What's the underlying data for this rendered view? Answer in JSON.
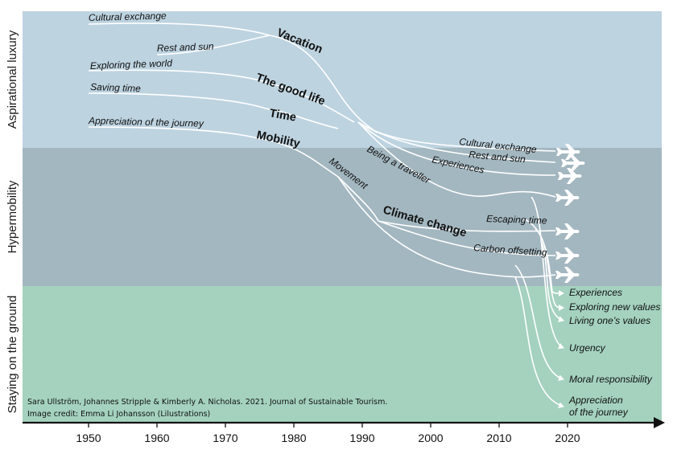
{
  "bands": {
    "aspirational": "Aspirational luxury",
    "hypermobility": "Hypermobility",
    "ground": "Staying on the ground"
  },
  "colors": {
    "aspirational": "#bdd3e0",
    "hypermobility": "#a3b7c0",
    "ground": "#a4d2be",
    "line": "#ffffff",
    "axis": "#111111"
  },
  "start_labels": [
    "Cultural exchange",
    "Rest and sun",
    "Exploring the world",
    "Saving time",
    "Appreciation of the journey"
  ],
  "concepts": {
    "vacation": "Vacation",
    "good_life": "The good life",
    "time": "Time",
    "mobility": "Mobility",
    "climate_change": "Climate change"
  },
  "path_labels": {
    "being_a_traveller": "Being a traveller",
    "movement": "Movement"
  },
  "flight_outcomes": [
    "Cultural exchange",
    "Rest and sun",
    "Experiences",
    "Escaping time",
    "Carbon offsetting"
  ],
  "ground_outcomes": [
    "Experiences",
    "Exploring new values",
    "Living one’s values",
    "Urgency",
    "Moral responsibility",
    "Appreciation",
    "of the journey"
  ],
  "x_axis": {
    "ticks": [
      "1950",
      "1960",
      "1970",
      "1980",
      "1990",
      "2000",
      "2010",
      "2020"
    ]
  },
  "credit": {
    "citation": "Sara Ullström, Johannes Stripple & Kimberly A. Nicholas. 2021. Journal of Sustainable Tourism.",
    "image_credit": "Image credit: Emma Li Johansson (Lilustrations)"
  },
  "icons": {
    "plane": "airplane-icon",
    "arrow": "arrowhead-icon",
    "axis_arrow": "axis-arrow-icon"
  }
}
